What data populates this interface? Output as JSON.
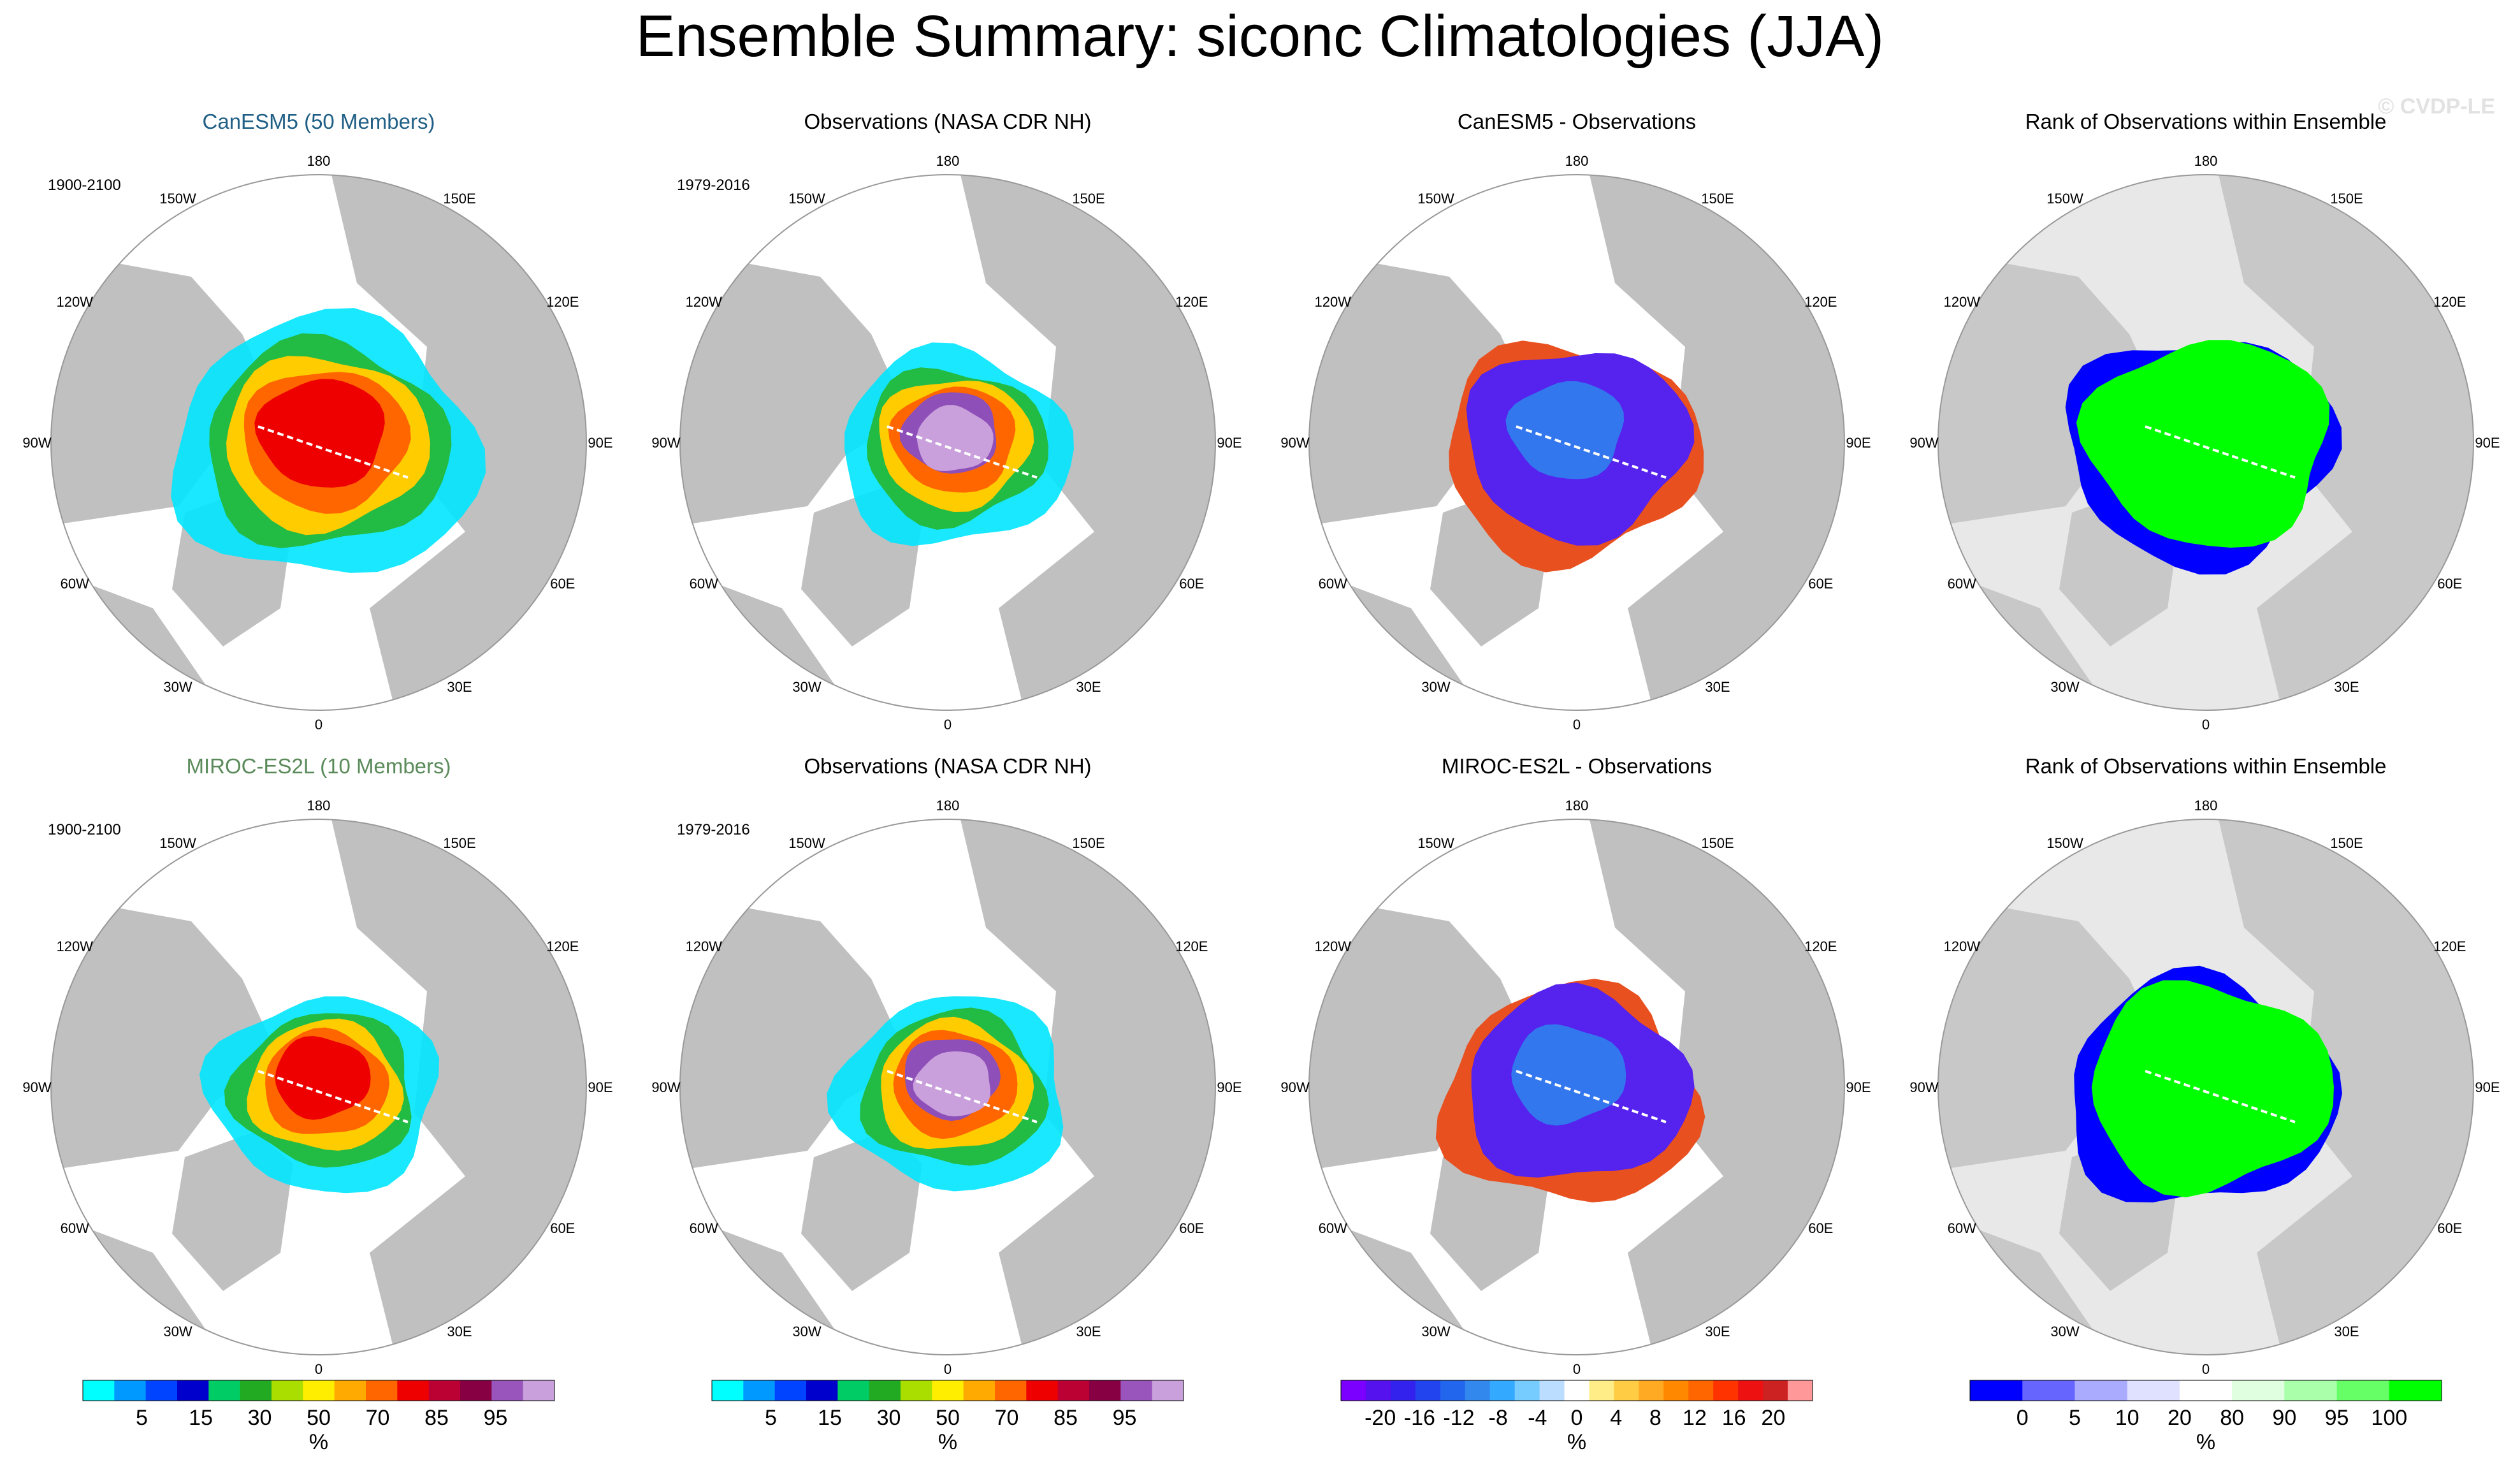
{
  "figure": {
    "title": "Ensemble Summary: siconc Climatologies (JJA)",
    "watermark": "© CVDP-LE"
  },
  "map_labels": {
    "lon": [
      "180",
      "150E",
      "120E",
      "90E",
      "60E",
      "30E",
      "0",
      "30W",
      "60W",
      "90W",
      "120W",
      "150W"
    ]
  },
  "panels": [
    {
      "title": "CanESM5 (50 Members)",
      "title_color": "#1f5f85",
      "period": "1900-2100",
      "kind": "model",
      "model": "canesm5"
    },
    {
      "title": "Observations (NASA CDR NH)",
      "title_color": "#000000",
      "period": "1979-2016",
      "kind": "obs",
      "model": "obs"
    },
    {
      "title": "CanESM5 - Observations",
      "title_color": "#000000",
      "period": "",
      "kind": "diff",
      "model": "canesm5"
    },
    {
      "title": "Rank of Observations within Ensemble",
      "title_color": "#000000",
      "period": "",
      "kind": "rank",
      "model": "canesm5"
    },
    {
      "title": "MIROC-ES2L (10 Members)",
      "title_color": "#5a8a5a",
      "period": "1900-2100",
      "kind": "model",
      "model": "miroc"
    },
    {
      "title": "Observations (NASA CDR NH)",
      "title_color": "#000000",
      "period": "1979-2016",
      "kind": "obs",
      "model": "obs"
    },
    {
      "title": "MIROC-ES2L - Observations",
      "title_color": "#000000",
      "period": "",
      "kind": "diff",
      "model": "miroc"
    },
    {
      "title": "Rank of Observations within Ensemble",
      "title_color": "#000000",
      "period": "",
      "kind": "rank",
      "model": "miroc"
    }
  ],
  "colorbars": [
    {
      "unit": "%",
      "labels": [
        "5",
        "15",
        "30",
        "50",
        "70",
        "85",
        "95"
      ],
      "colors": [
        "#00ffff",
        "#0099ff",
        "#0044ff",
        "#0000cc",
        "#00cc66",
        "#22aa22",
        "#aadd00",
        "#ffee00",
        "#ffaa00",
        "#ff6600",
        "#ee0000",
        "#bb0033",
        "#880044",
        "#9955bb",
        "#c9a0dc"
      ]
    },
    {
      "unit": "%",
      "labels": [
        "5",
        "15",
        "30",
        "50",
        "70",
        "85",
        "95"
      ],
      "colors": [
        "#00ffff",
        "#0099ff",
        "#0044ff",
        "#0000cc",
        "#00cc66",
        "#22aa22",
        "#aadd00",
        "#ffee00",
        "#ffaa00",
        "#ff6600",
        "#ee0000",
        "#bb0033",
        "#880044",
        "#9955bb",
        "#c9a0dc"
      ]
    },
    {
      "unit": "%",
      "labels": [
        "-20",
        "-16",
        "-12",
        "-8",
        "-4",
        "0",
        "4",
        "8",
        "12",
        "16",
        "20"
      ],
      "colors": [
        "#7b00ff",
        "#5511ee",
        "#3322ee",
        "#2244ee",
        "#2266ee",
        "#3388ee",
        "#33aaff",
        "#77ccff",
        "#bbddff",
        "#ffffff",
        "#ffee88",
        "#ffcc44",
        "#ffaa22",
        "#ff8800",
        "#ff6600",
        "#ff3300",
        "#ee1111",
        "#cc2222",
        "#ff9999"
      ]
    },
    {
      "unit": "%",
      "labels": [
        "0",
        "5",
        "10",
        "20",
        "80",
        "90",
        "95",
        "100"
      ],
      "colors": [
        "#0000ff",
        "#6666ff",
        "#aaaaff",
        "#e0e0ff",
        "#ffffff",
        "#e0ffe0",
        "#aaffaa",
        "#66ff66",
        "#00ff00"
      ]
    }
  ],
  "colors": {
    "land": "#c0c0c0",
    "ocean": "#ffffff",
    "rank_background": "#e8e8e8"
  }
}
